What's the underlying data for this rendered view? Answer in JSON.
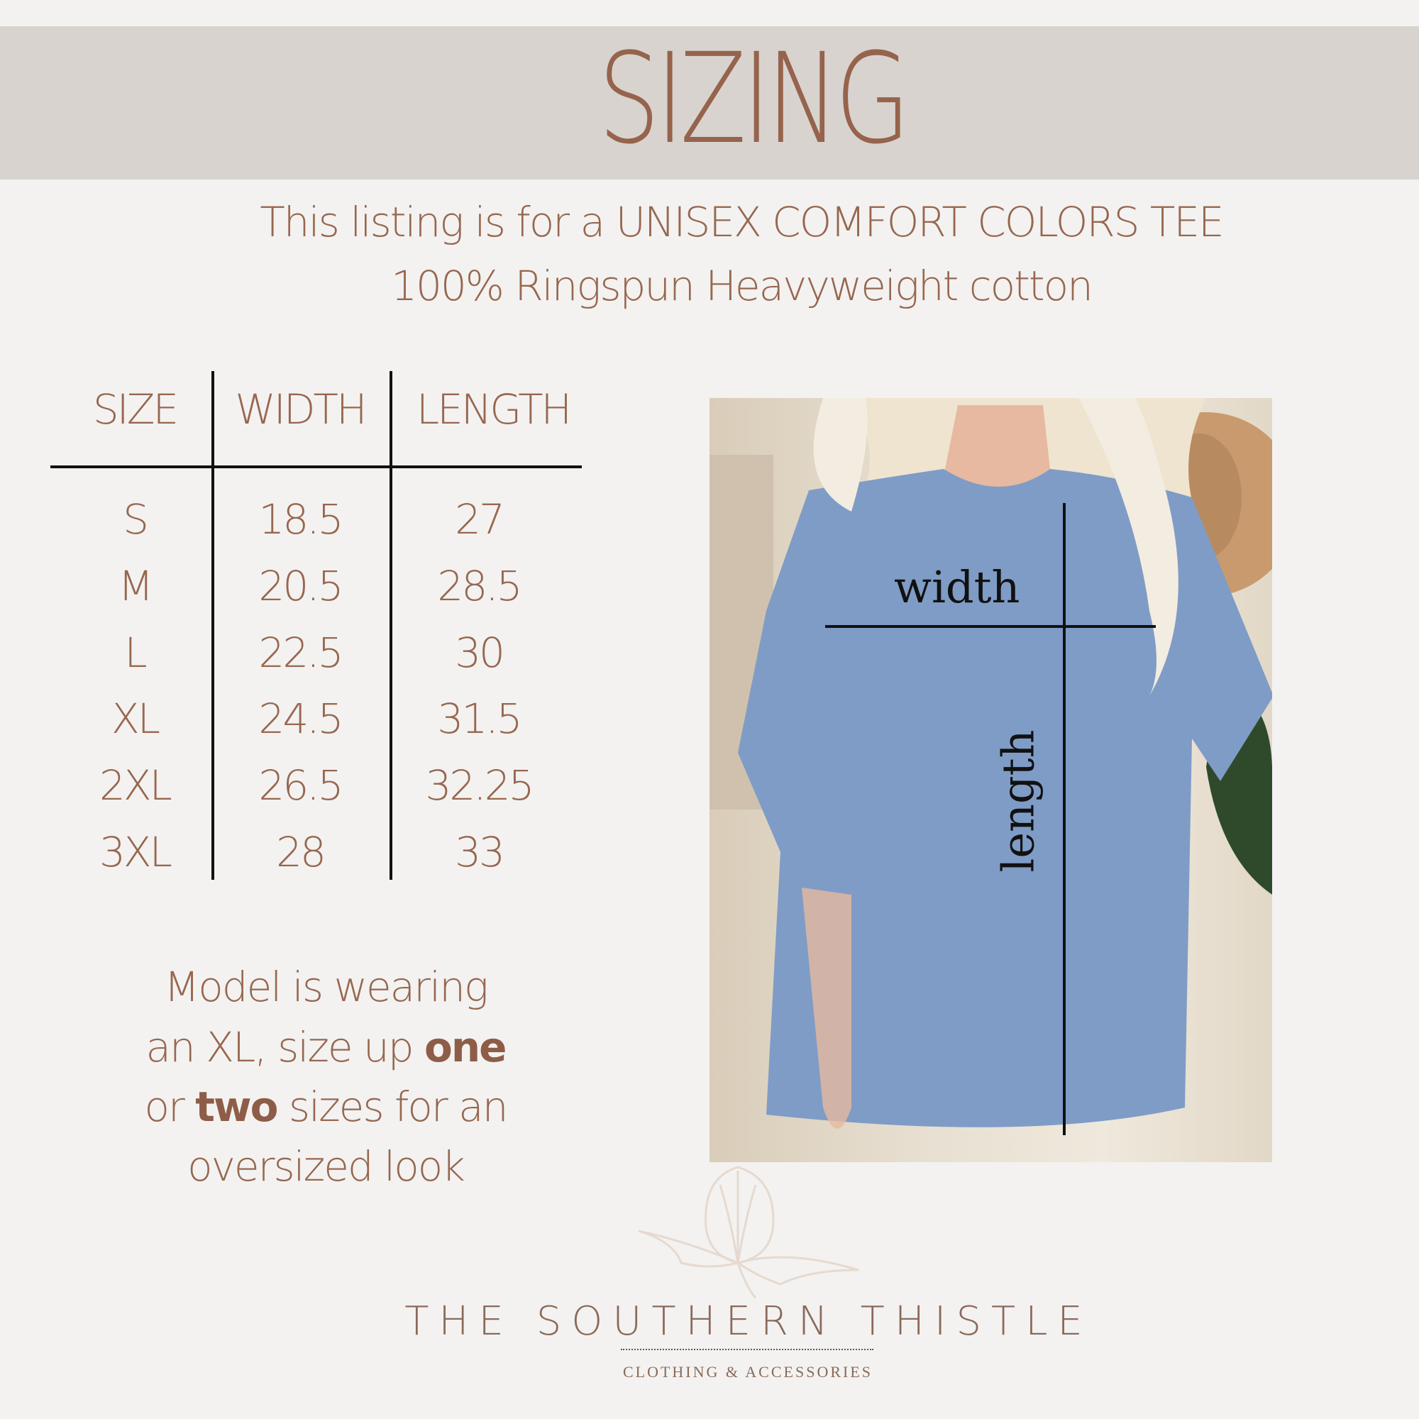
{
  "header": {
    "title": "SIZING",
    "background": "#d8d3cf",
    "text_color": "#96634c"
  },
  "description": {
    "line1": "This listing is for a UNISEX COMFORT COLORS TEE",
    "line2": "100% Ringspun Heavyweight cotton"
  },
  "size_table": {
    "headers": [
      "SIZE",
      "WIDTH",
      "LENGTH"
    ],
    "rows": [
      [
        "S",
        "18.5",
        "27"
      ],
      [
        "M",
        "20.5",
        "28.5"
      ],
      [
        "L",
        "22.5",
        "30"
      ],
      [
        "XL",
        "24.5",
        "31.5"
      ],
      [
        "2XL",
        "26.5",
        "32.25"
      ],
      [
        "3XL",
        "28",
        "33"
      ]
    ]
  },
  "model_note": {
    "l1": "Model is wearing",
    "l2a": "an XL, size up ",
    "l2b": "one",
    "l3a": "or ",
    "l3b": "two",
    "l3c": " sizes for an",
    "l4": "oversized look"
  },
  "photo": {
    "width_label": "width",
    "length_label": "length",
    "tee_color": "#7f9cc6"
  },
  "brand": {
    "name": "THE SOUTHERN THISTLE",
    "tagline": "CLOTHING & ACCESSORIES"
  }
}
